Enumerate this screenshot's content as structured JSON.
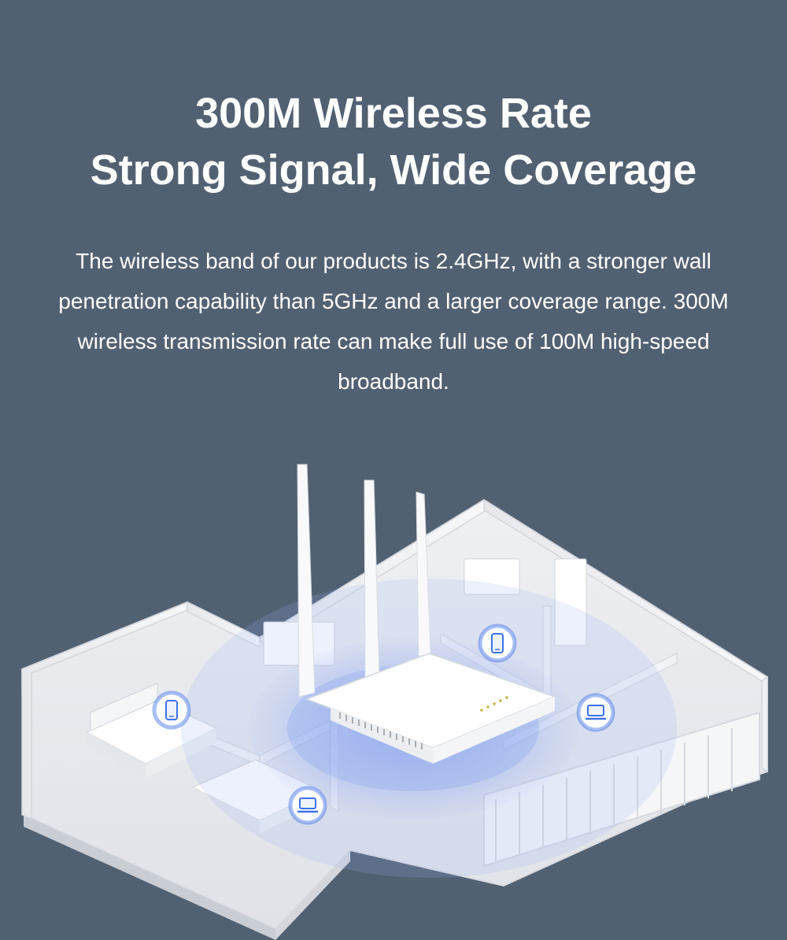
{
  "banner": {
    "title_line1": "300M Wireless Rate",
    "title_line2": "Strong Signal, Wide Coverage",
    "description": "The wireless band of our products is 2.4GHz, with a stronger wall penetration capability than 5GHz and a larger coverage range. 300M wireless transmission rate can make full use of 100M high-speed broadband."
  },
  "illustration": {
    "subject": "router-in-apartment",
    "device_icons": [
      "phone-icon",
      "phone-icon",
      "laptop-icon",
      "laptop-icon"
    ],
    "colors": {
      "background": "#526172",
      "wall": "#f4f5f7",
      "signal": "#7e9df0",
      "icon_ring": "#3d72e8"
    }
  }
}
